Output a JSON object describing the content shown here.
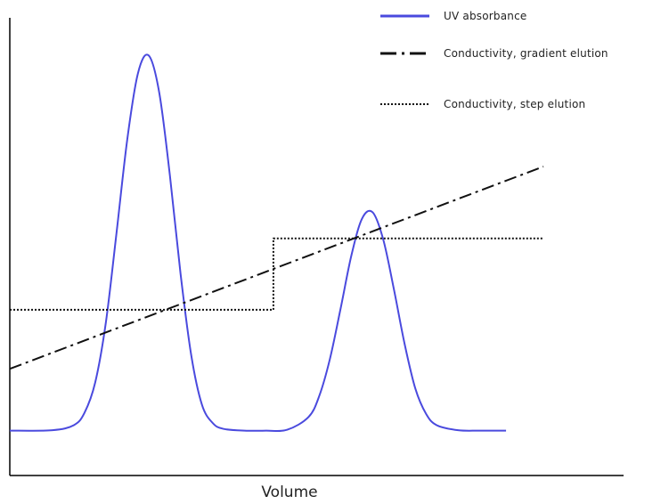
{
  "chart_data": {
    "type": "line",
    "title": "",
    "xlabel": "Volume",
    "ylabel": "",
    "xlim": [
      0,
      100
    ],
    "ylim": [
      0,
      100
    ],
    "grid": false,
    "legend_position": "top-right",
    "series": [
      {
        "name": "UV absorbance",
        "color": "#4a4ade",
        "style": "solid",
        "x": [
          0,
          8,
          12,
          14,
          16,
          18,
          20,
          22,
          24,
          26,
          28,
          30,
          32,
          34,
          36,
          38,
          40,
          44,
          48,
          52,
          56,
          58,
          60,
          62,
          64,
          66,
          68,
          70,
          72,
          74,
          76,
          78,
          80,
          84,
          88,
          93
        ],
        "y": [
          9.8,
          9.9,
          11.0,
          13.7,
          20.3,
          33.4,
          53.0,
          73.3,
          87.8,
          91.8,
          83.7,
          65.6,
          44.1,
          26.3,
          15.5,
          11.5,
          10.2,
          9.8,
          9.8,
          10.0,
          12.8,
          17.4,
          25.5,
          36.5,
          48.0,
          56.1,
          57.5,
          51.5,
          40.6,
          28.7,
          19.0,
          13.5,
          11.0,
          9.9,
          9.8,
          9.8
        ]
      },
      {
        "name": "Conductivity, gradient elution",
        "color": "#111111",
        "style": "dashdot",
        "x": [
          0,
          100
        ],
        "y": [
          23.3,
          67.5
        ]
      },
      {
        "name": "Conductivity, step elution",
        "color": "#111111",
        "style": "dotted",
        "x": [
          0,
          49.4,
          49.4,
          100
        ],
        "y": [
          36.2,
          36.2,
          51.8,
          51.8
        ]
      }
    ]
  }
}
